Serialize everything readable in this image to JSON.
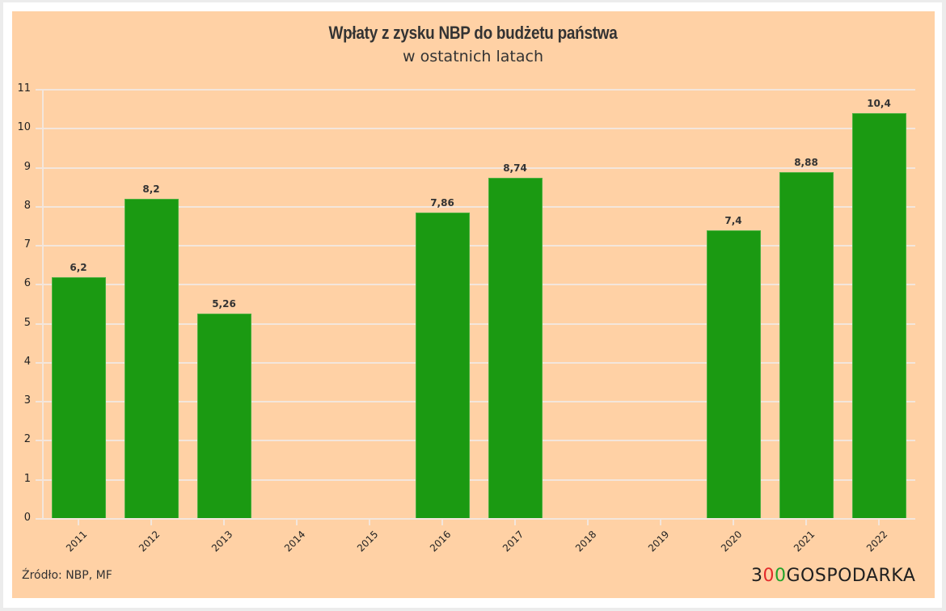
{
  "header": {
    "title": "Wpłaty z zysku NBP do budżetu państwa",
    "subtitle": "w ostatnich latach"
  },
  "footer": {
    "source": "Źródło: NBP, MF",
    "logo": {
      "prefix": "3",
      "o1": "0",
      "o2": "0",
      "suffix": "GOSPODARKA"
    }
  },
  "colors": {
    "background": "#ffd1a5",
    "bar": "#1b9a12",
    "grid": "#f3e6dc",
    "text": "#333333",
    "logo_red": "#e32b2b",
    "logo_green": "#22a32a"
  },
  "chart_data": {
    "type": "bar",
    "title": "Wpłaty z zysku NBP do budżetu państwa",
    "subtitle": "w ostatnich latach",
    "xlabel": "",
    "ylabel": "",
    "categories": [
      "2011",
      "2012",
      "2013",
      "2014",
      "2015",
      "2016",
      "2017",
      "2018",
      "2019",
      "2020",
      "2021",
      "2022"
    ],
    "values": [
      6.2,
      8.2,
      5.26,
      0,
      0,
      7.86,
      8.74,
      0,
      0,
      7.4,
      8.88,
      10.4
    ],
    "value_labels": [
      "6,2",
      "8,2",
      "5,26",
      "",
      "",
      "7,86",
      "8,74",
      "",
      "",
      "7,4",
      "8,88",
      "10,4"
    ],
    "ylim": [
      0,
      11
    ],
    "yticks": [
      "0",
      "1",
      "2",
      "3",
      "4",
      "5",
      "6",
      "7",
      "8",
      "9",
      "10",
      "11"
    ],
    "grid": true,
    "legend": null,
    "source": "Źródło: NBP, MF"
  }
}
